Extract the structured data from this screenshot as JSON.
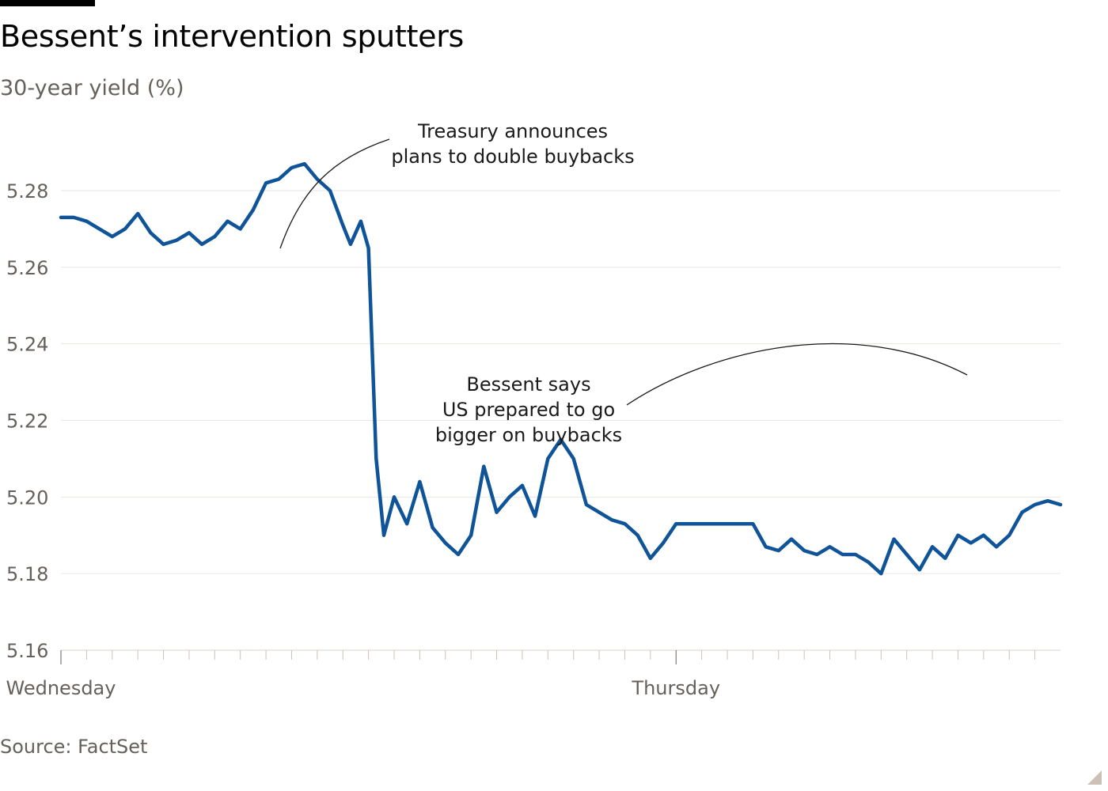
{
  "header": {
    "title": "Bessent’s intervention sputters",
    "subtitle": "30-year yield (%)"
  },
  "footer": {
    "source": "Source: FactSet"
  },
  "colors": {
    "line": "#0f5499",
    "grid": "#e9e5e0",
    "text": "#66605c",
    "annotation": "#1a1a1a"
  },
  "chart_data": {
    "type": "line",
    "title": "Bessent’s intervention sputters",
    "ylabel": "30-year yield (%)",
    "ylim": [
      5.16,
      5.29
    ],
    "yticks": [
      "5.28",
      "5.26",
      "5.24",
      "5.22",
      "5.20",
      "5.18",
      "5.16"
    ],
    "ytick_values": [
      5.28,
      5.26,
      5.24,
      5.22,
      5.2,
      5.18,
      5.16
    ],
    "xlim": [
      0,
      39
    ],
    "xticks": [
      "Wednesday",
      "Thursday"
    ],
    "xtick_values": [
      0,
      24
    ],
    "grid": true,
    "series": [
      {
        "values": [
          [
            0,
            5.273
          ],
          [
            0.5,
            5.273
          ],
          [
            1,
            5.272
          ],
          [
            1.5,
            5.27
          ],
          [
            2,
            5.268
          ],
          [
            2.5,
            5.27
          ],
          [
            3,
            5.274
          ],
          [
            3.5,
            5.269
          ],
          [
            4,
            5.266
          ],
          [
            4.5,
            5.267
          ],
          [
            5,
            5.269
          ],
          [
            5.5,
            5.266
          ],
          [
            6,
            5.268
          ],
          [
            6.5,
            5.272
          ],
          [
            7,
            5.27
          ],
          [
            7.5,
            5.275
          ],
          [
            8,
            5.282
          ],
          [
            8.5,
            5.283
          ],
          [
            9,
            5.286
          ],
          [
            9.5,
            5.287
          ],
          [
            10,
            5.283
          ],
          [
            10.5,
            5.28
          ],
          [
            11,
            5.271
          ],
          [
            11.3,
            5.266
          ],
          [
            11.7,
            5.272
          ],
          [
            12,
            5.265
          ],
          [
            12.3,
            5.21
          ],
          [
            12.6,
            5.19
          ],
          [
            13,
            5.2
          ],
          [
            13.5,
            5.193
          ],
          [
            14,
            5.204
          ],
          [
            14.5,
            5.192
          ],
          [
            15,
            5.188
          ],
          [
            15.5,
            5.185
          ],
          [
            16,
            5.19
          ],
          [
            16.5,
            5.208
          ],
          [
            17,
            5.196
          ],
          [
            17.5,
            5.2
          ],
          [
            18,
            5.203
          ],
          [
            18.5,
            5.195
          ],
          [
            19,
            5.21
          ],
          [
            19.5,
            5.215
          ],
          [
            20,
            5.21
          ],
          [
            20.5,
            5.198
          ],
          [
            21,
            5.196
          ],
          [
            21.5,
            5.194
          ],
          [
            22,
            5.193
          ],
          [
            22.5,
            5.19
          ],
          [
            23,
            5.184
          ],
          [
            23.5,
            5.188
          ],
          [
            24,
            5.193
          ],
          [
            24.5,
            5.193
          ],
          [
            25,
            5.193
          ],
          [
            26,
            5.193
          ],
          [
            26.5,
            5.193
          ],
          [
            27,
            5.193
          ],
          [
            27.5,
            5.187
          ],
          [
            28,
            5.186
          ],
          [
            28.5,
            5.189
          ],
          [
            29,
            5.186
          ],
          [
            29.5,
            5.185
          ],
          [
            30,
            5.187
          ],
          [
            30.5,
            5.185
          ],
          [
            31,
            5.185
          ],
          [
            31.5,
            5.183
          ],
          [
            32,
            5.18
          ],
          [
            32.5,
            5.189
          ],
          [
            33,
            5.185
          ],
          [
            33.5,
            5.181
          ],
          [
            34,
            5.187
          ],
          [
            34.5,
            5.184
          ],
          [
            35,
            5.19
          ],
          [
            35.5,
            5.188
          ],
          [
            36,
            5.19
          ],
          [
            36.5,
            5.187
          ],
          [
            37,
            5.19
          ],
          [
            37.5,
            5.196
          ],
          [
            38,
            5.198
          ],
          [
            38.5,
            5.199
          ],
          [
            39,
            5.198
          ]
        ]
      }
    ],
    "annotations": [
      {
        "lines": [
          "Treasury announces",
          "plans to double buybacks"
        ]
      },
      {
        "lines": [
          "Bessent says",
          "US prepared to go",
          "bigger on buybacks"
        ]
      }
    ]
  }
}
